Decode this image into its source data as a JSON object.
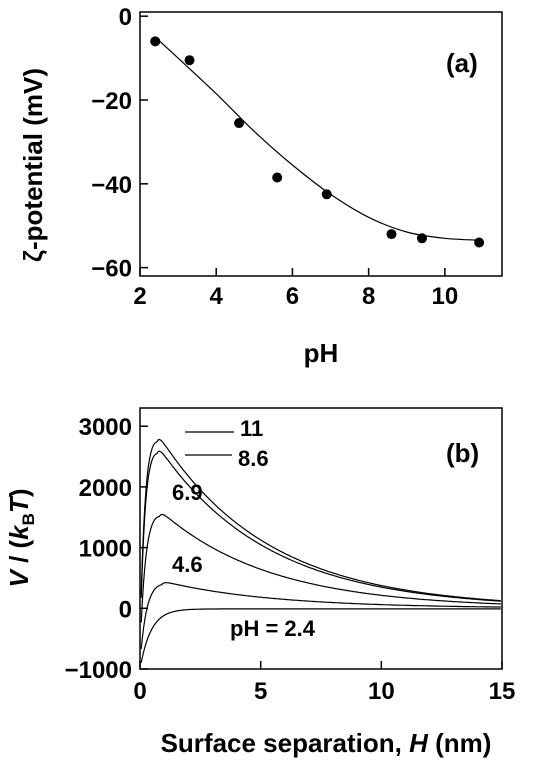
{
  "chart_data": [
    {
      "type": "scatter",
      "panel_label": "(a)",
      "xlabel": "pH",
      "ylabel": "ζ-potential  (mV)",
      "xlim": [
        2,
        11.5
      ],
      "ylim": [
        -62,
        1
      ],
      "xticks": [
        2,
        4,
        6,
        8,
        10
      ],
      "yticks": [
        0,
        -20,
        -40,
        -60
      ],
      "xtick_labels": [
        "2",
        "4",
        "6",
        "8",
        "10"
      ],
      "ytick_labels": [
        "0",
        "−20",
        "−40",
        "−60"
      ],
      "grid": false,
      "points": {
        "x": [
          2.4,
          3.3,
          4.6,
          5.6,
          6.9,
          8.6,
          9.4,
          10.9
        ],
        "y": [
          -6,
          -10.5,
          -25.5,
          -38.5,
          -42.5,
          -52,
          -53,
          -54
        ]
      },
      "fit": {
        "x": [
          2.4,
          3.0,
          4.0,
          5.0,
          6.0,
          7.0,
          8.0,
          9.0,
          10.0,
          11.0
        ],
        "y": [
          -5,
          -10,
          -18.5,
          -27.5,
          -35.5,
          -42.5,
          -48,
          -51.5,
          -53,
          -53.5
        ]
      }
    },
    {
      "type": "line",
      "panel_label": "(b)",
      "xlabel": "Surface separation, H  (nm)",
      "ylabel": "V / (kBT)",
      "xlim": [
        0,
        15
      ],
      "ylim": [
        -1000,
        3300
      ],
      "xticks": [
        0,
        5,
        10,
        15
      ],
      "yticks": [
        -1000,
        0,
        1000,
        2000,
        3000
      ],
      "xtick_labels": [
        "0",
        "5",
        "10",
        "15"
      ],
      "ytick_labels": [
        "−1000",
        "0",
        "1000",
        "2000",
        "3000"
      ],
      "grid": false,
      "series": [
        {
          "name": "11",
          "peak": 2900,
          "peak_x": 0.7
        },
        {
          "name": "8.6",
          "peak": 2700,
          "peak_x": 0.7
        },
        {
          "name": "6.9",
          "peak": 1620,
          "peak_x": 0.8
        },
        {
          "name": "4.6",
          "peak": 450,
          "peak_x": 0.9
        },
        {
          "name": "pH = 2.4",
          "peak": -10,
          "peak_x": 2.5
        }
      ]
    }
  ]
}
